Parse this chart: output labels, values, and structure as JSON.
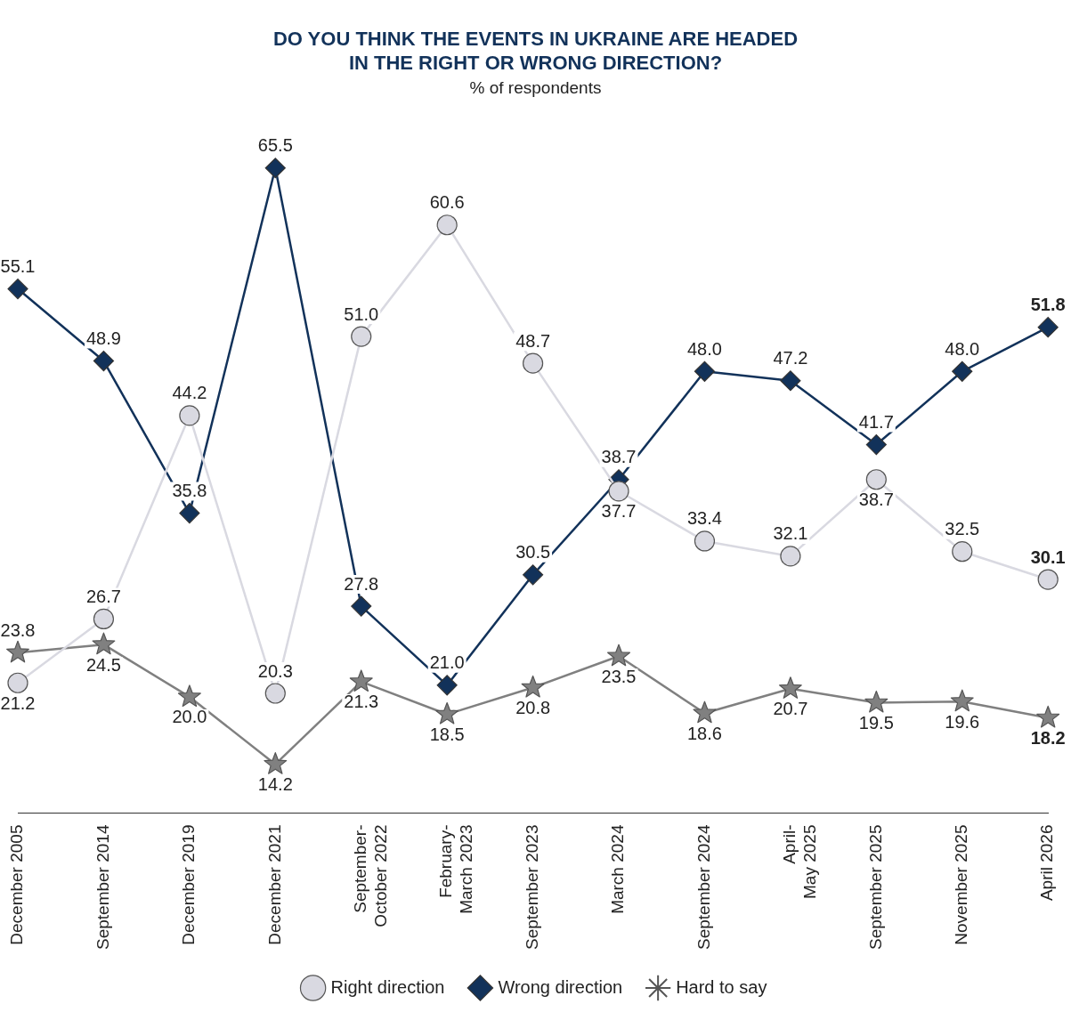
{
  "chart_data": {
    "type": "line",
    "title": "DO YOU THINK THE EVENTS IN UKRAINE ARE HEADED IN THE RIGHT OR WRONG DIRECTION?",
    "subtitle": "% of respondents",
    "categories": [
      "December 2005",
      "September 2014",
      "December 2019",
      "December 2021",
      "September-October 2022",
      "February-March 2023",
      "September 2023",
      "March 2024",
      "September 2024",
      "April-May 2025",
      "September 2025",
      "November 2025",
      "April 2026"
    ],
    "series": [
      {
        "name": "Right direction",
        "color": "#d9d9e1",
        "marker": "circle",
        "values": [
          21.2,
          26.7,
          44.2,
          20.3,
          51.0,
          60.6,
          48.7,
          37.7,
          33.4,
          32.1,
          38.7,
          32.5,
          30.1
        ],
        "value_labels": [
          "21.2",
          "26.7",
          "44.2",
          "20.3",
          "51.0",
          "60.6",
          "48.7",
          "37.7",
          "33.4",
          "32.1",
          "38.7",
          "32.5",
          "30.1"
        ]
      },
      {
        "name": "Wrong direction",
        "color": "#12325a",
        "marker": "diamond",
        "values": [
          55.1,
          48.9,
          35.8,
          65.5,
          27.8,
          21.0,
          30.5,
          38.7,
          48.0,
          47.2,
          41.7,
          48.0,
          51.8
        ],
        "value_labels": [
          "55.1",
          "48.9",
          "35.8",
          "65.5",
          "27.8",
          "21.0",
          "30.5",
          "38.7",
          "48.0",
          "47.2",
          "41.7",
          "48.0",
          "51.8"
        ]
      },
      {
        "name": "Hard to say",
        "color": "#808080",
        "marker": "star",
        "values": [
          23.8,
          24.5,
          20.0,
          14.2,
          21.3,
          18.5,
          20.8,
          23.5,
          18.6,
          20.7,
          19.5,
          19.6,
          18.2
        ],
        "value_labels": [
          "23.8",
          "24.5",
          "20.0",
          "14.2",
          "21.3",
          "18.5",
          "20.8",
          "23.5",
          "18.6",
          "20.7",
          "19.5",
          "19.6",
          "18.2"
        ]
      }
    ],
    "tick_labels": "x",
    "grid": false,
    "legend": "bottom"
  }
}
